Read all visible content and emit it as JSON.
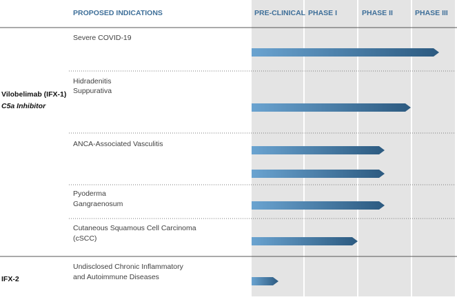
{
  "header": {
    "title": "PROPOSED INDICATIONS",
    "phases": [
      "PRE-CLINICAL",
      "PHASE I",
      "PHASE II",
      "PHASE III"
    ]
  },
  "programs": [
    {
      "name": "Vilobelimab (IFX-1)",
      "subtitle": "C5a Inhibitor",
      "indications": [
        {
          "lines": [
            "Severe COVID-19"
          ]
        },
        {
          "lines": [
            "Hidradenitis",
            "Suppurativa"
          ]
        },
        {
          "lines": [
            "ANCA-Associated Vasculitis"
          ]
        },
        {
          "lines": [
            "Pyoderma",
            "Gangraenosum"
          ]
        },
        {
          "lines": [
            "Cutaneous Squamous Cell Carcinoma",
            "(cSCC)"
          ]
        }
      ]
    },
    {
      "name": "IFX-2",
      "indications": [
        {
          "lines": [
            "Undisclosed Chronic Inflammatory",
            "and Autoimmune Diseases"
          ]
        }
      ]
    }
  ]
}
